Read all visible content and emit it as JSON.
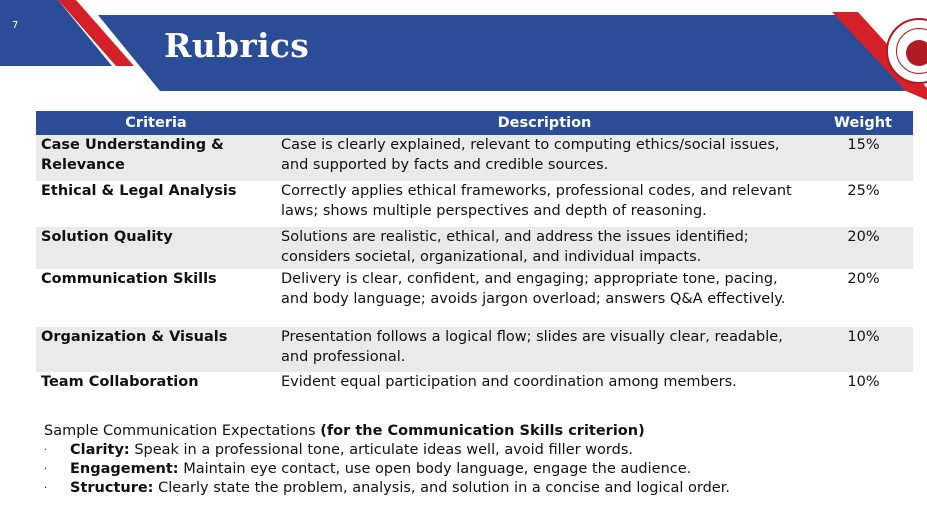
{
  "slide": {
    "number": "7",
    "title": "Rubrics"
  },
  "colors": {
    "navy": "#2b4c96",
    "red": "#d42029",
    "row_shade": "#eaeaea"
  },
  "table": {
    "headers": [
      "Criteria",
      "Description",
      "Weight"
    ],
    "rows": [
      {
        "criteria": "Case Understanding & Relevance",
        "description": "Case is clearly explained, relevant to computing ethics/social issues, and supported by facts and credible sources.",
        "weight": "15%"
      },
      {
        "criteria": "Ethical & Legal Analysis",
        "description": "Correctly applies ethical frameworks, professional codes, and relevant laws; shows multiple perspectives and depth of reasoning.",
        "weight": "25%"
      },
      {
        "criteria": "Solution Quality",
        "description": "Solutions are realistic, ethical, and address the issues identified; considers societal, organizational, and individual impacts.",
        "weight": "20%"
      },
      {
        "criteria": "Communication Skills",
        "description": "Delivery is clear, confident, and engaging; appropriate tone, pacing, and body language; avoids jargon overload; answers Q&A effectively.",
        "weight": "20%"
      },
      {
        "criteria": "Organization & Visuals",
        "description": "Presentation follows a logical flow; slides are visually clear, readable, and professional.",
        "weight": "10%"
      },
      {
        "criteria": "Team Collaboration",
        "description": "Evident equal participation and coordination among members.",
        "weight": "10%"
      }
    ]
  },
  "notes": {
    "heading": "Sample Communication Expectations",
    "heading_bold": "(for the Communication Skills criterion)",
    "bullet_glyph": "·",
    "items": [
      {
        "label": "Clarity:",
        "text": "Speak in a professional tone, articulate ideas well, avoid filler words."
      },
      {
        "label": "Engagement:",
        "text": "Maintain eye contact, use open body language, engage the audience."
      },
      {
        "label": "Structure:",
        "text": "Clearly state the problem, analysis, and solution in a concise and logical order."
      }
    ]
  }
}
